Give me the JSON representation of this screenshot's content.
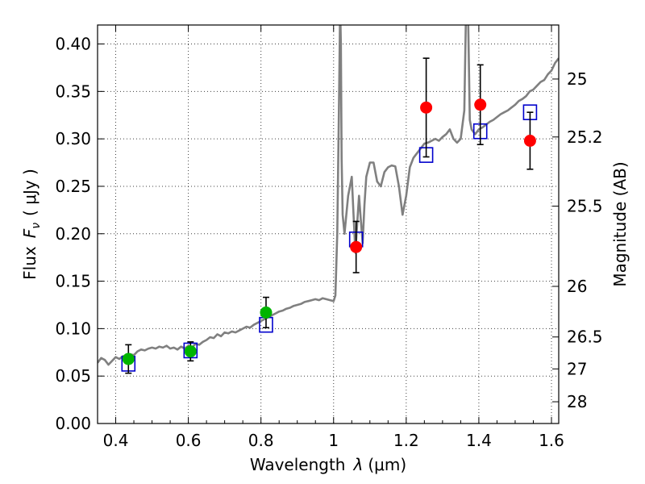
{
  "chart_data": {
    "type": "scatter",
    "title": "",
    "xlabel_text": "Wavelength",
    "xlabel_symbol": "λ",
    "xlabel_unit": "(μm)",
    "ylabel_text": "Flux",
    "ylabel_symbol": "F",
    "ylabel_subscript": "ν",
    "ylabel_unit": "( μJy )",
    "y2label": "Magnitude (AB)",
    "xlim": [
      0.35,
      1.62
    ],
    "ylim": [
      0.0,
      0.42
    ],
    "grid": true,
    "x_ticks": [
      0.4,
      0.6,
      0.8,
      1.0,
      1.2,
      1.4,
      1.6
    ],
    "x_tick_labels": [
      "0.4",
      "0.6",
      "0.8",
      "1",
      "1.2",
      "1.4",
      "1.6"
    ],
    "y_ticks": [
      0.0,
      0.05,
      0.1,
      0.15,
      0.2,
      0.25,
      0.3,
      0.35,
      0.4
    ],
    "y_tick_labels": [
      "0.00",
      "0.05",
      "0.10",
      "0.15",
      "0.20",
      "0.25",
      "0.30",
      "0.35",
      "0.40"
    ],
    "mag_ticks": [
      25,
      25.2,
      25.5,
      26,
      26.5,
      27,
      28
    ],
    "mag_tick_labels": [
      "25",
      "25.2",
      "25.5",
      "26",
      "26.5",
      "27",
      "28"
    ],
    "colors": {
      "spectrum": "#808080",
      "green": "#00b400",
      "red": "#ff0000",
      "square": "#0000cc",
      "errorbar": "#000000"
    },
    "series": [
      {
        "name": "model-spectrum",
        "kind": "line",
        "x": [
          0.35,
          0.36,
          0.37,
          0.38,
          0.39,
          0.4,
          0.41,
          0.42,
          0.43,
          0.44,
          0.45,
          0.46,
          0.47,
          0.48,
          0.49,
          0.5,
          0.51,
          0.52,
          0.53,
          0.54,
          0.55,
          0.56,
          0.57,
          0.58,
          0.59,
          0.6,
          0.61,
          0.62,
          0.63,
          0.64,
          0.65,
          0.66,
          0.67,
          0.68,
          0.69,
          0.7,
          0.71,
          0.72,
          0.73,
          0.74,
          0.75,
          0.76,
          0.77,
          0.78,
          0.79,
          0.8,
          0.81,
          0.82,
          0.83,
          0.84,
          0.85,
          0.86,
          0.87,
          0.88,
          0.89,
          0.9,
          0.91,
          0.92,
          0.93,
          0.94,
          0.95,
          0.96,
          0.97,
          0.98,
          0.99,
          1.0,
          1.005,
          1.01,
          1.015,
          1.018,
          1.02,
          1.022,
          1.025,
          1.03,
          1.04,
          1.05,
          1.055,
          1.06,
          1.065,
          1.07,
          1.075,
          1.08,
          1.085,
          1.09,
          1.1,
          1.11,
          1.12,
          1.13,
          1.14,
          1.15,
          1.16,
          1.17,
          1.18,
          1.19,
          1.2,
          1.21,
          1.22,
          1.23,
          1.24,
          1.25,
          1.26,
          1.27,
          1.28,
          1.29,
          1.3,
          1.31,
          1.32,
          1.33,
          1.34,
          1.35,
          1.36,
          1.365,
          1.37,
          1.375,
          1.38,
          1.39,
          1.4,
          1.41,
          1.42,
          1.43,
          1.44,
          1.45,
          1.46,
          1.47,
          1.48,
          1.49,
          1.5,
          1.51,
          1.52,
          1.53,
          1.54,
          1.55,
          1.56,
          1.57,
          1.58,
          1.59,
          1.6,
          1.61,
          1.62
        ],
        "y": [
          0.064,
          0.069,
          0.067,
          0.062,
          0.066,
          0.07,
          0.068,
          0.071,
          0.069,
          0.073,
          0.072,
          0.076,
          0.078,
          0.077,
          0.079,
          0.08,
          0.079,
          0.081,
          0.08,
          0.082,
          0.079,
          0.08,
          0.078,
          0.081,
          0.079,
          0.082,
          0.08,
          0.084,
          0.083,
          0.086,
          0.088,
          0.091,
          0.09,
          0.094,
          0.092,
          0.096,
          0.095,
          0.097,
          0.096,
          0.098,
          0.1,
          0.102,
          0.101,
          0.104,
          0.106,
          0.108,
          0.11,
          0.112,
          0.114,
          0.116,
          0.118,
          0.119,
          0.121,
          0.122,
          0.124,
          0.125,
          0.126,
          0.128,
          0.129,
          0.13,
          0.131,
          0.13,
          0.132,
          0.131,
          0.13,
          0.129,
          0.135,
          0.2,
          0.34,
          0.44,
          0.4,
          0.28,
          0.22,
          0.2,
          0.24,
          0.26,
          0.22,
          0.18,
          0.21,
          0.24,
          0.215,
          0.19,
          0.23,
          0.26,
          0.275,
          0.275,
          0.255,
          0.25,
          0.265,
          0.27,
          0.272,
          0.271,
          0.25,
          0.22,
          0.24,
          0.27,
          0.28,
          0.285,
          0.29,
          0.295,
          0.296,
          0.298,
          0.3,
          0.298,
          0.302,
          0.305,
          0.31,
          0.3,
          0.296,
          0.3,
          0.33,
          0.44,
          0.44,
          0.32,
          0.31,
          0.305,
          0.31,
          0.312,
          0.315,
          0.318,
          0.32,
          0.323,
          0.326,
          0.328,
          0.33,
          0.333,
          0.336,
          0.34,
          0.342,
          0.345,
          0.35,
          0.352,
          0.356,
          0.36,
          0.362,
          0.368,
          0.372,
          0.38,
          0.385
        ]
      },
      {
        "name": "model-photometry",
        "kind": "square",
        "x": [
          0.435,
          0.606,
          0.814,
          1.062,
          1.255,
          1.404,
          1.541
        ],
        "y": [
          0.063,
          0.077,
          0.104,
          0.194,
          0.283,
          0.308,
          0.328
        ]
      },
      {
        "name": "observed-optical",
        "kind": "point",
        "color": "green",
        "x": [
          0.435,
          0.606,
          0.814
        ],
        "y": [
          0.068,
          0.076,
          0.117
        ],
        "yerr": [
          0.015,
          0.01,
          0.016
        ]
      },
      {
        "name": "observed-nir",
        "kind": "point",
        "color": "red",
        "x": [
          1.062,
          1.255,
          1.404,
          1.541
        ],
        "y": [
          0.186,
          0.333,
          0.336,
          0.298
        ],
        "yerr": [
          0.027,
          0.052,
          0.042,
          0.03
        ]
      }
    ]
  }
}
